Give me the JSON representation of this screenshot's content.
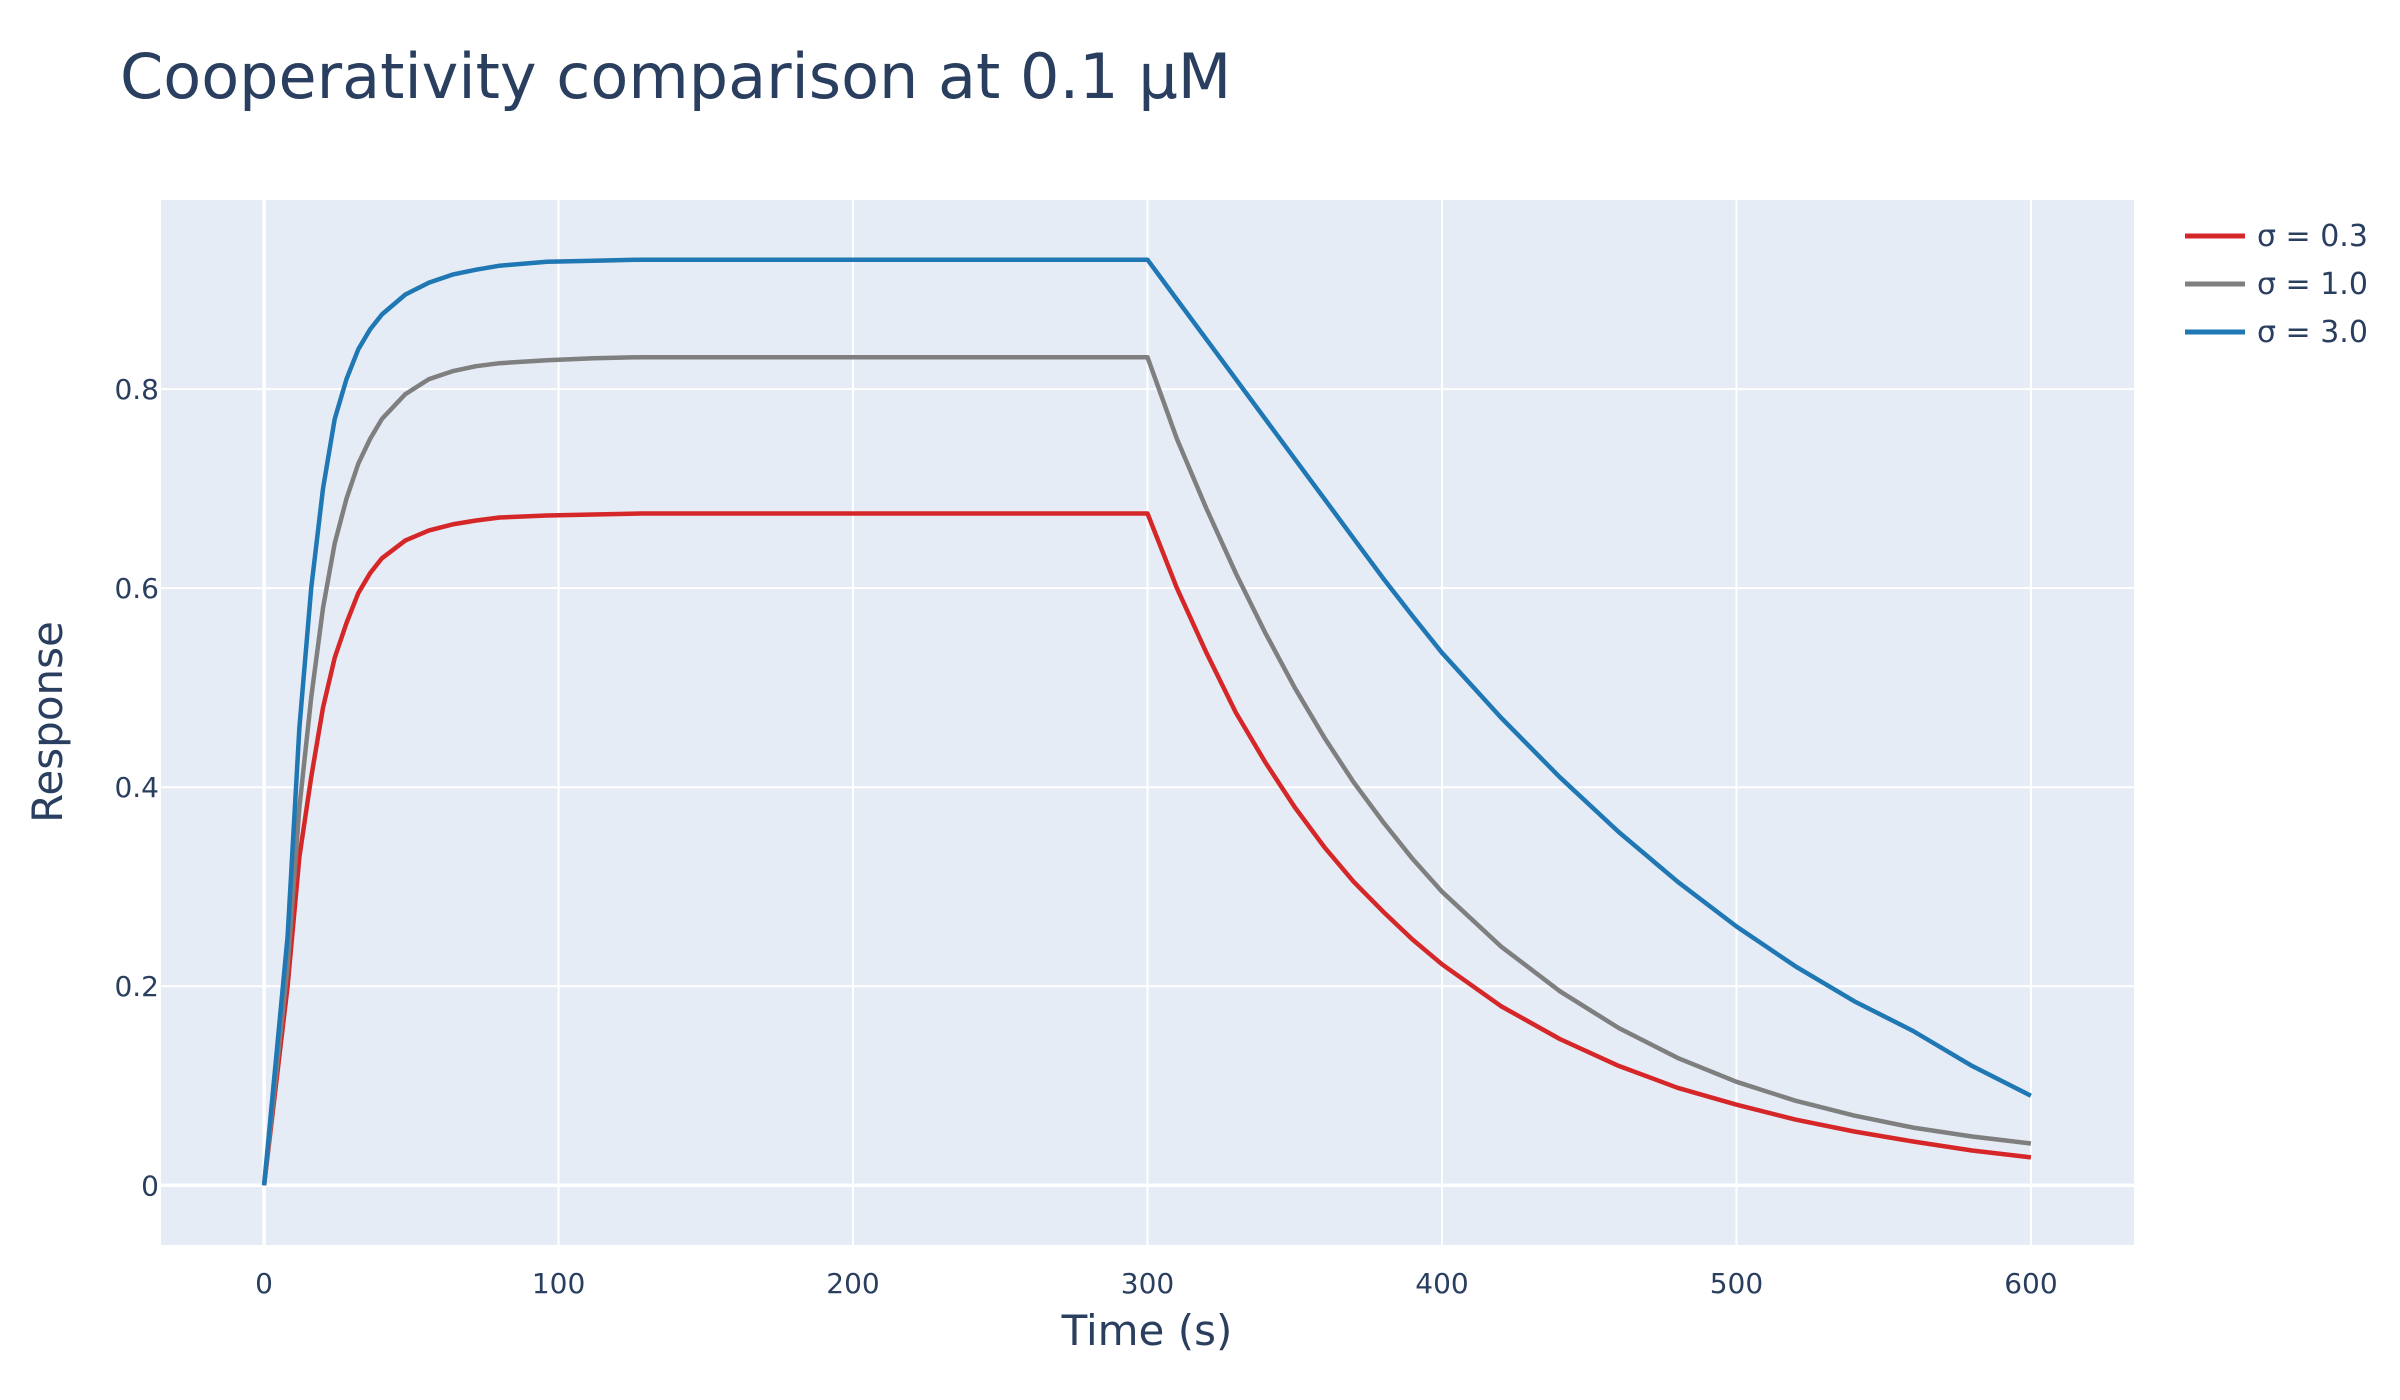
{
  "chart_data": {
    "type": "line",
    "title": "Cooperativity comparison at 0.1 μM",
    "xlabel": "Time (s)",
    "ylabel": "Response",
    "xlim": [
      -35,
      635
    ],
    "ylim": [
      -0.06,
      0.99
    ],
    "x_ticks": [
      0,
      100,
      200,
      300,
      400,
      500,
      600
    ],
    "y_ticks": [
      0,
      0.2,
      0.4,
      0.6,
      0.8
    ],
    "x_tick_labels": [
      "0",
      "100",
      "200",
      "300",
      "400",
      "500",
      "600"
    ],
    "y_tick_labels": [
      "0",
      "0.2",
      "0.4",
      "0.6",
      "0.8"
    ],
    "grid": true,
    "legend_position": "top-right outside",
    "background": "#e5ecf6",
    "series": [
      {
        "name": "σ = 0.3",
        "color": "#d62728",
        "x": [
          0,
          8,
          12,
          16,
          20,
          24,
          28,
          32,
          36,
          40,
          48,
          56,
          64,
          72,
          80,
          96,
          112,
          128,
          150,
          200,
          250,
          300,
          310,
          320,
          330,
          340,
          350,
          360,
          370,
          380,
          390,
          400,
          420,
          440,
          460,
          480,
          500,
          520,
          540,
          560,
          580,
          600
        ],
        "y": [
          0,
          0.2,
          0.33,
          0.41,
          0.48,
          0.53,
          0.565,
          0.595,
          0.615,
          0.63,
          0.648,
          0.658,
          0.664,
          0.668,
          0.671,
          0.673,
          0.674,
          0.675,
          0.675,
          0.675,
          0.675,
          0.675,
          0.6,
          0.535,
          0.475,
          0.425,
          0.38,
          0.34,
          0.305,
          0.275,
          0.247,
          0.222,
          0.18,
          0.147,
          0.12,
          0.098,
          0.081,
          0.066,
          0.054,
          0.044,
          0.035,
          0.028
        ]
      },
      {
        "name": "σ = 1.0",
        "color": "#7f7f7f",
        "x": [
          0,
          8,
          12,
          16,
          20,
          24,
          28,
          32,
          36,
          40,
          48,
          56,
          64,
          72,
          80,
          96,
          112,
          128,
          150,
          200,
          250,
          300,
          310,
          320,
          330,
          340,
          350,
          360,
          370,
          380,
          390,
          400,
          420,
          440,
          460,
          480,
          500,
          520,
          540,
          560,
          580,
          600
        ],
        "y": [
          0,
          0.22,
          0.38,
          0.49,
          0.58,
          0.645,
          0.69,
          0.725,
          0.75,
          0.77,
          0.795,
          0.81,
          0.818,
          0.823,
          0.826,
          0.829,
          0.831,
          0.832,
          0.832,
          0.832,
          0.832,
          0.832,
          0.75,
          0.68,
          0.615,
          0.555,
          0.5,
          0.45,
          0.405,
          0.365,
          0.328,
          0.295,
          0.24,
          0.195,
          0.158,
          0.128,
          0.104,
          0.085,
          0.07,
          0.058,
          0.049,
          0.042
        ]
      },
      {
        "name": "σ = 3.0",
        "color": "#1f77b4",
        "x": [
          0,
          8,
          12,
          16,
          20,
          24,
          28,
          32,
          36,
          40,
          48,
          56,
          64,
          72,
          80,
          96,
          112,
          128,
          150,
          200,
          250,
          300,
          310,
          320,
          330,
          340,
          350,
          360,
          370,
          380,
          390,
          400,
          420,
          440,
          460,
          480,
          500,
          520,
          540,
          560,
          580,
          600
        ],
        "y": [
          0,
          0.25,
          0.46,
          0.6,
          0.7,
          0.77,
          0.81,
          0.84,
          0.86,
          0.875,
          0.895,
          0.907,
          0.915,
          0.92,
          0.924,
          0.928,
          0.929,
          0.93,
          0.93,
          0.93,
          0.93,
          0.93,
          0.89,
          0.85,
          0.81,
          0.77,
          0.73,
          0.69,
          0.65,
          0.61,
          0.572,
          0.535,
          0.47,
          0.41,
          0.355,
          0.305,
          0.26,
          0.22,
          0.185,
          0.155,
          0.12,
          0.09
        ]
      }
    ]
  }
}
